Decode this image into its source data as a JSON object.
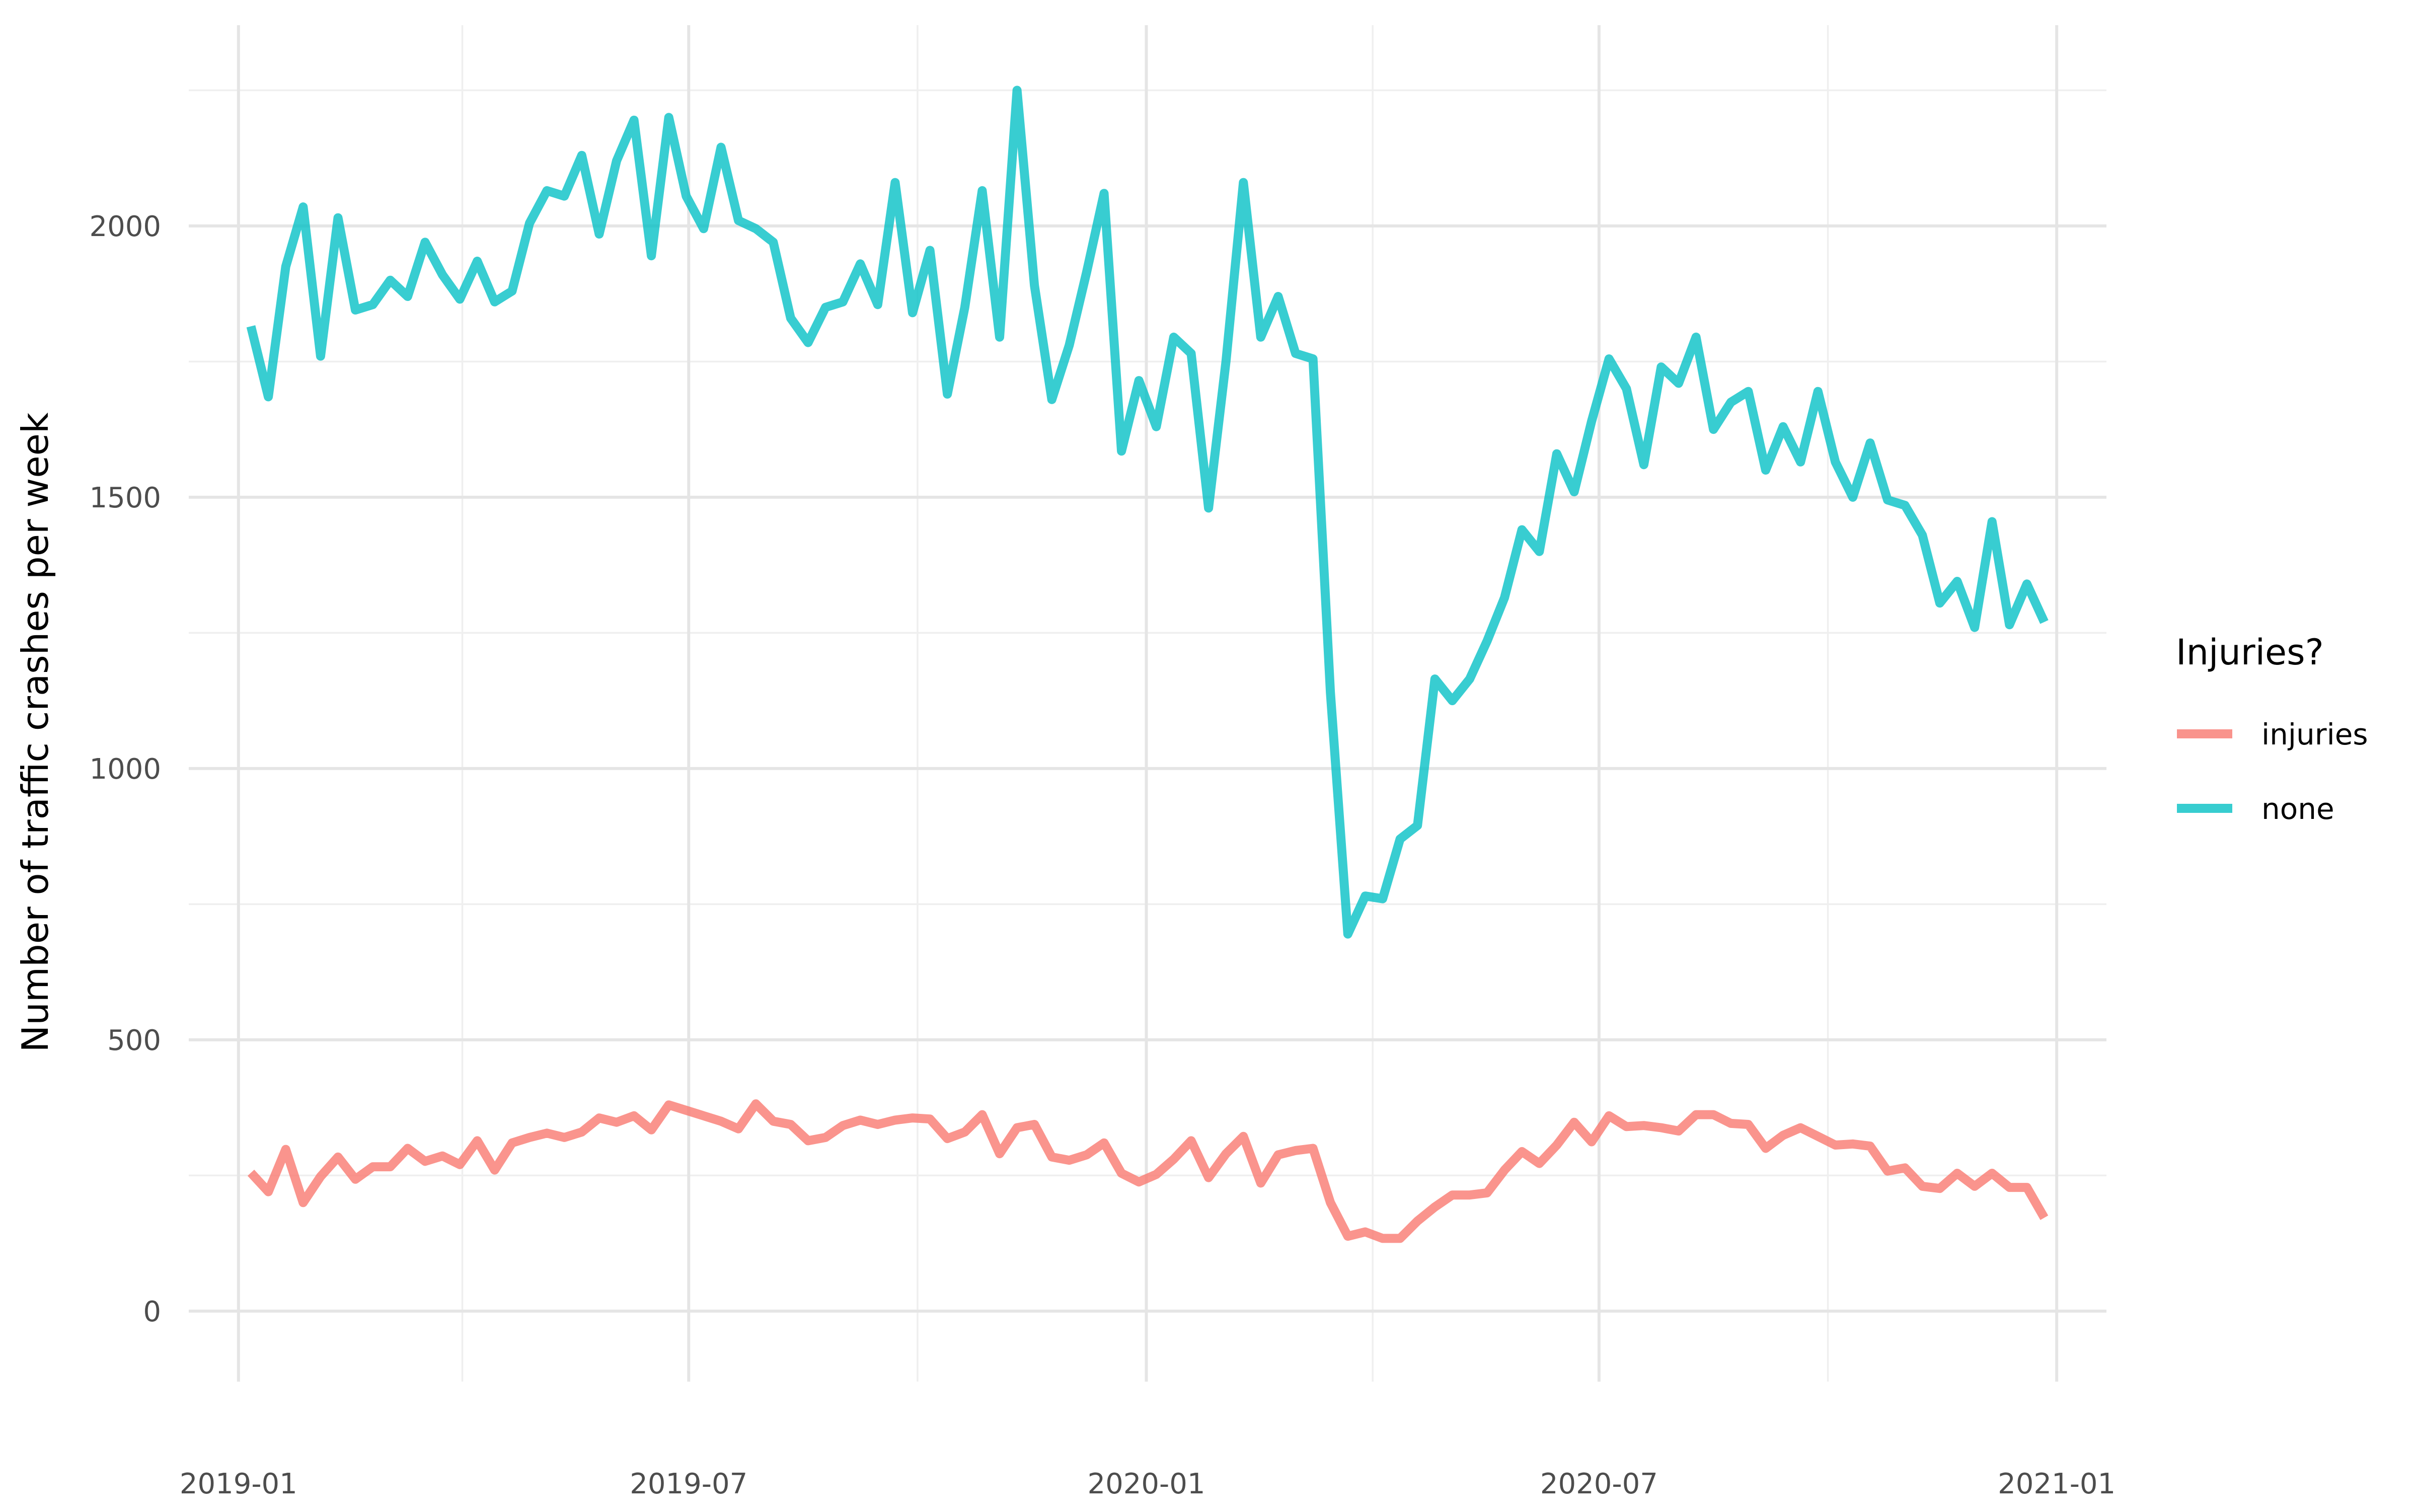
{
  "chart_data": {
    "type": "line",
    "title": "",
    "xlabel": "",
    "ylabel": "Number of traffic crashes per week",
    "ylim": [
      -130,
      2370
    ],
    "xlim": [
      "2018-12-12",
      "2021-01-21"
    ],
    "y_ticks": [
      0,
      500,
      1000,
      1500,
      2000
    ],
    "x_ticks": [
      "2019-01",
      "2019-07",
      "2020-01",
      "2020-07",
      "2021-01"
    ],
    "x_minor_ticks": [
      "2019-04",
      "2019-10",
      "2020-04",
      "2020-10"
    ],
    "grid": true,
    "legend_title": "Injuries?",
    "legend_position": "right",
    "series": [
      {
        "name": "injuries",
        "color": "#F8766D",
        "points": [
          [
            "2019-01-06",
            255
          ],
          [
            "2019-01-13",
            220
          ],
          [
            "2019-01-20",
            298
          ],
          [
            "2019-01-27",
            200
          ],
          [
            "2019-02-03",
            248
          ],
          [
            "2019-02-10",
            284
          ],
          [
            "2019-02-17",
            243
          ],
          [
            "2019-02-24",
            266
          ],
          [
            "2019-03-03",
            266
          ],
          [
            "2019-03-10",
            300
          ],
          [
            "2019-03-17",
            276
          ],
          [
            "2019-03-24",
            286
          ],
          [
            "2019-03-31",
            270
          ],
          [
            "2019-04-07",
            314
          ],
          [
            "2019-04-14",
            260
          ],
          [
            "2019-04-21",
            310
          ],
          [
            "2019-04-28",
            320
          ],
          [
            "2019-05-05",
            328
          ],
          [
            "2019-05-12",
            320
          ],
          [
            "2019-05-19",
            330
          ],
          [
            "2019-05-26",
            356
          ],
          [
            "2019-06-02",
            348
          ],
          [
            "2019-06-09",
            360
          ],
          [
            "2019-06-16",
            334
          ],
          [
            "2019-06-23",
            380
          ],
          [
            "2019-06-30",
            370
          ],
          [
            "2019-07-07",
            360
          ],
          [
            "2019-07-14",
            350
          ],
          [
            "2019-07-21",
            336
          ],
          [
            "2019-07-28",
            382
          ],
          [
            "2019-08-04",
            350
          ],
          [
            "2019-08-11",
            344
          ],
          [
            "2019-08-18",
            314
          ],
          [
            "2019-08-25",
            320
          ],
          [
            "2019-09-01",
            342
          ],
          [
            "2019-09-08",
            352
          ],
          [
            "2019-09-15",
            344
          ],
          [
            "2019-09-22",
            352
          ],
          [
            "2019-09-29",
            356
          ],
          [
            "2019-10-06",
            354
          ],
          [
            "2019-10-13",
            318
          ],
          [
            "2019-10-20",
            330
          ],
          [
            "2019-10-27",
            362
          ],
          [
            "2019-11-03",
            290
          ],
          [
            "2019-11-10",
            338
          ],
          [
            "2019-11-17",
            344
          ],
          [
            "2019-11-24",
            284
          ],
          [
            "2019-12-01",
            278
          ],
          [
            "2019-12-08",
            288
          ],
          [
            "2019-12-15",
            310
          ],
          [
            "2019-12-22",
            254
          ],
          [
            "2019-12-29",
            238
          ],
          [
            "2020-01-05",
            252
          ],
          [
            "2020-01-12",
            280
          ],
          [
            "2020-01-19",
            314
          ],
          [
            "2020-01-26",
            246
          ],
          [
            "2020-02-02",
            290
          ],
          [
            "2020-02-09",
            322
          ],
          [
            "2020-02-16",
            236
          ],
          [
            "2020-02-23",
            288
          ],
          [
            "2020-03-01",
            296
          ],
          [
            "2020-03-08",
            300
          ],
          [
            "2020-03-15",
            200
          ],
          [
            "2020-03-22",
            138
          ],
          [
            "2020-03-29",
            146
          ],
          [
            "2020-04-05",
            134
          ],
          [
            "2020-04-12",
            134
          ],
          [
            "2020-04-19",
            166
          ],
          [
            "2020-04-26",
            192
          ],
          [
            "2020-05-03",
            214
          ],
          [
            "2020-05-10",
            214
          ],
          [
            "2020-05-17",
            218
          ],
          [
            "2020-05-24",
            260
          ],
          [
            "2020-05-31",
            294
          ],
          [
            "2020-06-07",
            272
          ],
          [
            "2020-06-14",
            306
          ],
          [
            "2020-06-21",
            348
          ],
          [
            "2020-06-28",
            312
          ],
          [
            "2020-07-05",
            360
          ],
          [
            "2020-07-12",
            340
          ],
          [
            "2020-07-19",
            342
          ],
          [
            "2020-07-26",
            338
          ],
          [
            "2020-08-02",
            332
          ],
          [
            "2020-08-09",
            362
          ],
          [
            "2020-08-16",
            362
          ],
          [
            "2020-08-23",
            346
          ],
          [
            "2020-08-30",
            344
          ],
          [
            "2020-09-06",
            300
          ],
          [
            "2020-09-13",
            324
          ],
          [
            "2020-09-20",
            338
          ],
          [
            "2020-09-27",
            322
          ],
          [
            "2020-10-04",
            306
          ],
          [
            "2020-10-11",
            308
          ],
          [
            "2020-10-18",
            304
          ],
          [
            "2020-10-25",
            258
          ],
          [
            "2020-11-01",
            264
          ],
          [
            "2020-11-08",
            230
          ],
          [
            "2020-11-15",
            226
          ],
          [
            "2020-11-22",
            254
          ],
          [
            "2020-11-29",
            230
          ],
          [
            "2020-12-06",
            254
          ],
          [
            "2020-12-13",
            228
          ],
          [
            "2020-12-20",
            228
          ],
          [
            "2020-12-27",
            172
          ]
        ]
      },
      {
        "name": "none",
        "color": "#00BFC4",
        "points": [
          [
            "2019-01-06",
            1815
          ],
          [
            "2019-01-13",
            1685
          ],
          [
            "2019-01-20",
            1925
          ],
          [
            "2019-01-27",
            2035
          ],
          [
            "2019-02-03",
            1760
          ],
          [
            "2019-02-10",
            2015
          ],
          [
            "2019-02-17",
            1845
          ],
          [
            "2019-02-24",
            1855
          ],
          [
            "2019-03-03",
            1900
          ],
          [
            "2019-03-10",
            1870
          ],
          [
            "2019-03-17",
            1970
          ],
          [
            "2019-03-24",
            1910
          ],
          [
            "2019-03-31",
            1865
          ],
          [
            "2019-04-07",
            1935
          ],
          [
            "2019-04-14",
            1860
          ],
          [
            "2019-04-21",
            1880
          ],
          [
            "2019-04-28",
            2005
          ],
          [
            "2019-05-05",
            2065
          ],
          [
            "2019-05-12",
            2055
          ],
          [
            "2019-05-19",
            2130
          ],
          [
            "2019-05-26",
            1985
          ],
          [
            "2019-06-02",
            2120
          ],
          [
            "2019-06-09",
            2195
          ],
          [
            "2019-06-16",
            1945
          ],
          [
            "2019-06-23",
            2200
          ],
          [
            "2019-06-30",
            2055
          ],
          [
            "2019-07-07",
            1995
          ],
          [
            "2019-07-14",
            2145
          ],
          [
            "2019-07-21",
            2010
          ],
          [
            "2019-07-28",
            1995
          ],
          [
            "2019-08-04",
            1970
          ],
          [
            "2019-08-11",
            1830
          ],
          [
            "2019-08-18",
            1785
          ],
          [
            "2019-08-25",
            1850
          ],
          [
            "2019-09-01",
            1860
          ],
          [
            "2019-09-08",
            1930
          ],
          [
            "2019-09-15",
            1855
          ],
          [
            "2019-09-22",
            2080
          ],
          [
            "2019-09-29",
            1840
          ],
          [
            "2019-10-06",
            1955
          ],
          [
            "2019-10-13",
            1690
          ],
          [
            "2019-10-20",
            1850
          ],
          [
            "2019-10-27",
            2065
          ],
          [
            "2019-11-03",
            1795
          ],
          [
            "2019-11-10",
            2250
          ],
          [
            "2019-11-17",
            1890
          ],
          [
            "2019-11-24",
            1680
          ],
          [
            "2019-12-01",
            1780
          ],
          [
            "2019-12-08",
            1915
          ],
          [
            "2019-12-15",
            2060
          ],
          [
            "2019-12-22",
            1585
          ],
          [
            "2019-12-29",
            1715
          ],
          [
            "2020-01-05",
            1630
          ],
          [
            "2020-01-12",
            1795
          ],
          [
            "2020-01-19",
            1765
          ],
          [
            "2020-01-26",
            1480
          ],
          [
            "2020-02-02",
            1750
          ],
          [
            "2020-02-09",
            2080
          ],
          [
            "2020-02-16",
            1795
          ],
          [
            "2020-02-23",
            1870
          ],
          [
            "2020-03-01",
            1765
          ],
          [
            "2020-03-08",
            1755
          ],
          [
            "2020-03-15",
            1140
          ],
          [
            "2020-03-22",
            695
          ],
          [
            "2020-03-29",
            765
          ],
          [
            "2020-04-05",
            760
          ],
          [
            "2020-04-12",
            870
          ],
          [
            "2020-04-19",
            895
          ],
          [
            "2020-04-26",
            1165
          ],
          [
            "2020-05-03",
            1125
          ],
          [
            "2020-05-10",
            1165
          ],
          [
            "2020-05-17",
            1235
          ],
          [
            "2020-05-24",
            1315
          ],
          [
            "2020-05-31",
            1440
          ],
          [
            "2020-06-07",
            1400
          ],
          [
            "2020-06-14",
            1580
          ],
          [
            "2020-06-21",
            1510
          ],
          [
            "2020-06-28",
            1640
          ],
          [
            "2020-07-05",
            1755
          ],
          [
            "2020-07-12",
            1700
          ],
          [
            "2020-07-19",
            1560
          ],
          [
            "2020-07-26",
            1740
          ],
          [
            "2020-08-02",
            1710
          ],
          [
            "2020-08-09",
            1795
          ],
          [
            "2020-08-16",
            1625
          ],
          [
            "2020-08-23",
            1675
          ],
          [
            "2020-08-30",
            1695
          ],
          [
            "2020-09-06",
            1550
          ],
          [
            "2020-09-13",
            1630
          ],
          [
            "2020-09-20",
            1565
          ],
          [
            "2020-09-27",
            1695
          ],
          [
            "2020-10-04",
            1565
          ],
          [
            "2020-10-11",
            1500
          ],
          [
            "2020-10-18",
            1600
          ],
          [
            "2020-10-25",
            1495
          ],
          [
            "2020-11-01",
            1485
          ],
          [
            "2020-11-08",
            1430
          ],
          [
            "2020-11-15",
            1305
          ],
          [
            "2020-11-22",
            1345
          ],
          [
            "2020-11-29",
            1260
          ],
          [
            "2020-12-06",
            1455
          ],
          [
            "2020-12-13",
            1265
          ],
          [
            "2020-12-20",
            1340
          ],
          [
            "2020-12-27",
            1270
          ]
        ]
      }
    ]
  }
}
